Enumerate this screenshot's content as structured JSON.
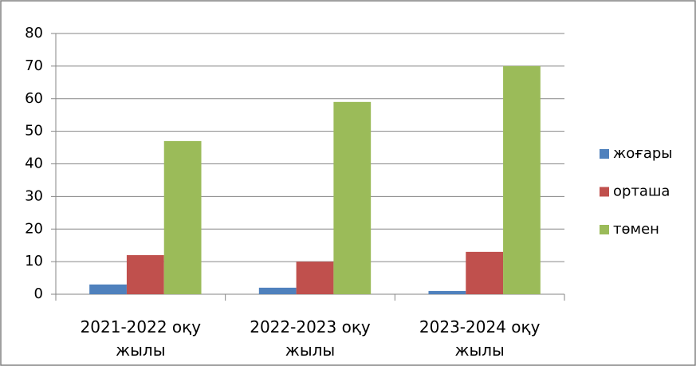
{
  "chart_data": {
    "type": "bar",
    "categories": [
      "2021-2022 оқу жылы",
      "2022-2023 оқу жылы",
      "2023-2024 оқу жылы"
    ],
    "series": [
      {
        "name": "жоғары",
        "color": "#4f81bd",
        "values": [
          3,
          2,
          1
        ]
      },
      {
        "name": "орташа",
        "color": "#c0504d",
        "values": [
          12,
          10,
          13
        ]
      },
      {
        "name": "төмен",
        "color": "#9bbb59",
        "values": [
          47,
          59,
          70
        ]
      }
    ],
    "ylim": [
      0,
      80
    ],
    "yticks": [
      0,
      10,
      20,
      30,
      40,
      50,
      60,
      70,
      80
    ],
    "grid": true,
    "legend": "right"
  }
}
